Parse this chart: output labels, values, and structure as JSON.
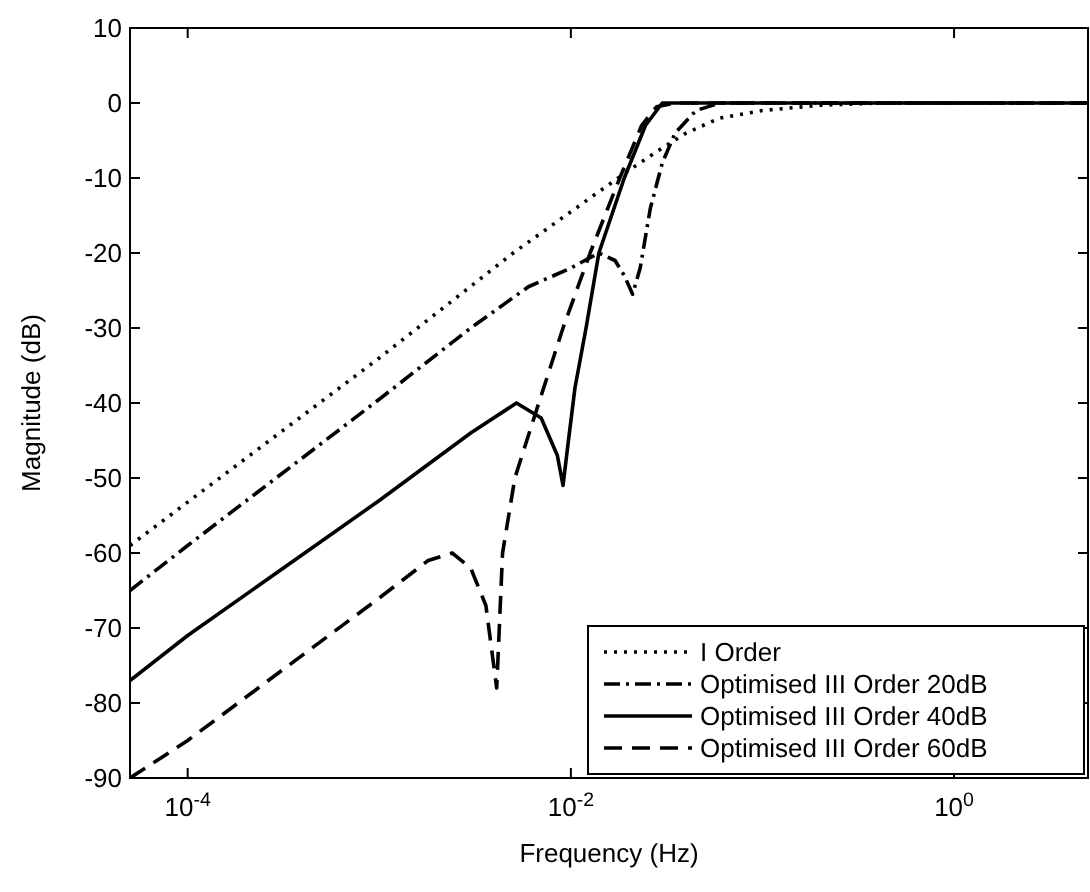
{
  "chart_data": {
    "type": "line",
    "xlabel": "Frequency (Hz)",
    "ylabel": "Magnitude (dB)",
    "log": "x",
    "xlim": [
      5e-05,
      5
    ],
    "ylim": [
      -90,
      10
    ],
    "xticks": [
      {
        "value": 0.0001,
        "label": "10$^{-4}$"
      },
      {
        "value": 0.01,
        "label": "10$^{-2}$"
      },
      {
        "value": 1,
        "label": "10$^{0}$"
      }
    ],
    "yticks": [
      -90,
      -80,
      -70,
      -60,
      -50,
      -40,
      -30,
      -20,
      -10,
      0,
      10
    ],
    "grid": false,
    "legend": "bottom right",
    "series": [
      {
        "name": "I Order",
        "color": "#000000",
        "line_style": "dotted",
        "x": [
          5e-05,
          0.001,
          0.005,
          0.01,
          0.02,
          0.03,
          0.04,
          0.06,
          0.1,
          0.2,
          0.4,
          5
        ],
        "values": [
          -59,
          -34,
          -20,
          -14.5,
          -9,
          -6,
          -4,
          -2,
          -1,
          -0.3,
          0,
          0
        ]
      },
      {
        "name": "Optimised III Order 20dB",
        "color": "#000000",
        "line_style": "dashdot",
        "x": [
          5e-05,
          0.0001,
          0.001,
          0.003,
          0.006,
          0.01,
          0.014,
          0.017,
          0.019,
          0.021,
          0.023,
          0.026,
          0.03,
          0.035,
          0.045,
          0.06,
          5
        ],
        "values": [
          -65,
          -59,
          -39.5,
          -30,
          -24.5,
          -22,
          -20,
          -21,
          -23,
          -25.5,
          -22,
          -14,
          -8,
          -4,
          -1,
          0,
          0
        ]
      },
      {
        "name": "Optimised III Order 40dB",
        "color": "#000000",
        "line_style": "solid",
        "x": [
          5e-05,
          0.0001,
          0.001,
          0.003,
          0.0052,
          0.007,
          0.0085,
          0.0091,
          0.0095,
          0.0105,
          0.012,
          0.014,
          0.019,
          0.0245,
          0.03,
          5
        ],
        "values": [
          -77,
          -71,
          -53,
          -44,
          -40,
          -42,
          -47,
          -51,
          -47,
          -38,
          -30,
          -20,
          -10,
          -3,
          0,
          0
        ]
      },
      {
        "name": "Optimised III Order 60dB",
        "color": "#000000",
        "line_style": "dashed",
        "x": [
          5e-05,
          0.0001,
          0.001,
          0.0018,
          0.0024,
          0.003,
          0.0036,
          0.0041,
          0.0044,
          0.0051,
          0.0068,
          0.0091,
          0.0126,
          0.018,
          0.0234,
          0.028,
          0.035,
          5
        ],
        "values": [
          -90,
          -85,
          -66,
          -61,
          -60,
          -62,
          -67,
          -78,
          -60,
          -50,
          -40,
          -30,
          -20,
          -10,
          -3,
          -0.5,
          0,
          0
        ]
      }
    ]
  }
}
